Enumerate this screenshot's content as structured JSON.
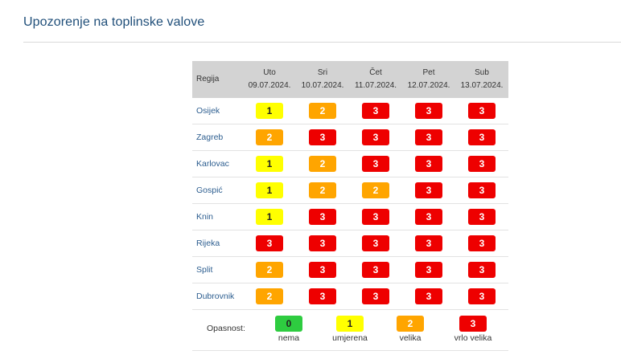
{
  "page": {
    "title": "Upozorenje na toplinske valove"
  },
  "table": {
    "region_header": "Regija",
    "days": [
      {
        "name": "Uto",
        "date": "09.07.2024."
      },
      {
        "name": "Sri",
        "date": "10.07.2024."
      },
      {
        "name": "Čet",
        "date": "11.07.2024."
      },
      {
        "name": "Pet",
        "date": "12.07.2024."
      },
      {
        "name": "Sub",
        "date": "13.07.2024."
      }
    ],
    "rows": [
      {
        "region": "Osijek",
        "levels": [
          "1",
          "2",
          "3",
          "3",
          "3"
        ]
      },
      {
        "region": "Zagreb",
        "levels": [
          "2",
          "3",
          "3",
          "3",
          "3"
        ]
      },
      {
        "region": "Karlovac",
        "levels": [
          "1",
          "2",
          "3",
          "3",
          "3"
        ]
      },
      {
        "region": "Gospić",
        "levels": [
          "1",
          "2",
          "2",
          "3",
          "3"
        ]
      },
      {
        "region": "Knin",
        "levels": [
          "1",
          "3",
          "3",
          "3",
          "3"
        ]
      },
      {
        "region": "Rijeka",
        "levels": [
          "3",
          "3",
          "3",
          "3",
          "3"
        ]
      },
      {
        "region": "Split",
        "levels": [
          "2",
          "3",
          "3",
          "3",
          "3"
        ]
      },
      {
        "region": "Dubrovnik",
        "levels": [
          "2",
          "3",
          "3",
          "3",
          "3"
        ]
      }
    ]
  },
  "legend": {
    "title": "Opasnost:",
    "items": [
      {
        "level": "0",
        "label": "nema"
      },
      {
        "level": "1",
        "label": "umjerena"
      },
      {
        "level": "2",
        "label": "velika"
      },
      {
        "level": "3",
        "label": "vrlo velika"
      }
    ]
  },
  "colors": {
    "level_0": "#2ecc40",
    "level_1": "#ffff00",
    "level_2": "#ffa500",
    "level_3": "#ee0000",
    "title": "#1f4e79",
    "region_link": "#2c5d8f",
    "header_bg": "#d3d3d3"
  }
}
